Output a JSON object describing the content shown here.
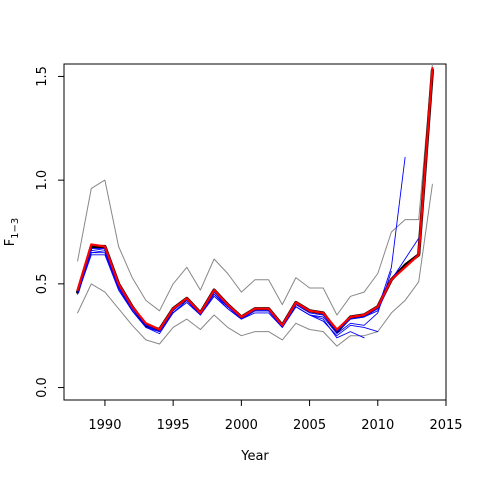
{
  "chart_data": {
    "type": "line",
    "title": "",
    "xlabel": "Year",
    "ylabel": "F",
    "ylabel_subscript": "1−3",
    "xlim": [
      1987,
      2015
    ],
    "ylim": [
      -0.06,
      1.56
    ],
    "xticks": [
      1990,
      1995,
      2000,
      2005,
      2010,
      2015
    ],
    "xtick_labels": [
      "1990",
      "1995",
      "2000",
      "2005",
      "2010",
      "2015"
    ],
    "yticks": [
      0.0,
      0.5,
      1.0,
      1.5
    ],
    "ytick_labels": [
      "0.0",
      "0.5",
      "1.0",
      "1.5"
    ],
    "grid": false,
    "colors": {
      "main": "#ff0000",
      "retro": "#0000ff",
      "ci": "#888888",
      "dark": "#000000"
    },
    "series": [
      {
        "role": "ci",
        "x": [
          1988,
          1989,
          1990,
          1991,
          1992,
          1993,
          1994,
          1995,
          1996,
          1997,
          1998,
          1999,
          2000,
          2001,
          2002,
          2003,
          2004,
          2005,
          2006,
          2007,
          2008,
          2009,
          2010,
          2011,
          2012,
          2013,
          2014
        ],
        "y": [
          0.61,
          0.96,
          1.0,
          0.68,
          0.53,
          0.42,
          0.37,
          0.5,
          0.58,
          0.47,
          0.62,
          0.55,
          0.46,
          0.52,
          0.52,
          0.4,
          0.53,
          0.48,
          0.48,
          0.35,
          0.44,
          0.46,
          0.55,
          0.75,
          0.81,
          0.81,
          1.56
        ]
      },
      {
        "role": "ci",
        "x": [
          1988,
          1989,
          1990,
          1991,
          1992,
          1993,
          1994,
          1995,
          1996,
          1997,
          1998,
          1999,
          2000,
          2001,
          2002,
          2003,
          2004,
          2005,
          2006,
          2007,
          2008,
          2009,
          2010,
          2011,
          2012,
          2013,
          2014
        ],
        "y": [
          0.36,
          0.5,
          0.46,
          0.38,
          0.3,
          0.23,
          0.21,
          0.29,
          0.33,
          0.28,
          0.35,
          0.29,
          0.25,
          0.27,
          0.27,
          0.23,
          0.31,
          0.28,
          0.27,
          0.2,
          0.25,
          0.25,
          0.27,
          0.36,
          0.42,
          0.51,
          0.98
        ]
      },
      {
        "role": "dark",
        "x": [
          1988,
          1989,
          1990,
          1991,
          1992,
          1993,
          1994,
          1995,
          1996,
          1997,
          1998,
          1999,
          2000,
          2001,
          2002,
          2003,
          2004,
          2005,
          2006,
          2007,
          2008,
          2009,
          2010,
          2011,
          2012,
          2013,
          2014
        ],
        "y": [
          0.46,
          0.68,
          0.68,
          0.5,
          0.39,
          0.3,
          0.28,
          0.38,
          0.43,
          0.36,
          0.47,
          0.4,
          0.34,
          0.38,
          0.38,
          0.3,
          0.41,
          0.37,
          0.36,
          0.27,
          0.34,
          0.35,
          0.39,
          0.52,
          0.59,
          0.64,
          1.53
        ]
      },
      {
        "role": "retro",
        "x": [
          1988,
          1989,
          1990,
          1991,
          1992,
          1993,
          1994,
          1995,
          1996,
          1997,
          1998,
          1999,
          2000,
          2001,
          2002,
          2003,
          2004,
          2005,
          2006,
          2007,
          2008,
          2009,
          2010,
          2011,
          2012
        ],
        "y": [
          0.46,
          0.66,
          0.67,
          0.49,
          0.38,
          0.3,
          0.27,
          0.37,
          0.43,
          0.36,
          0.46,
          0.4,
          0.34,
          0.38,
          0.38,
          0.3,
          0.4,
          0.37,
          0.36,
          0.27,
          0.33,
          0.34,
          0.38,
          0.58,
          1.11
        ]
      },
      {
        "role": "retro",
        "x": [
          1988,
          1989,
          1990,
          1991,
          1992,
          1993,
          1994,
          1995,
          1996,
          1997,
          1998,
          1999,
          2000,
          2001,
          2002,
          2003,
          2004,
          2005,
          2006,
          2007,
          2008,
          2009,
          2010,
          2011,
          2012,
          2013
        ],
        "y": [
          0.46,
          0.67,
          0.67,
          0.49,
          0.38,
          0.3,
          0.28,
          0.37,
          0.43,
          0.35,
          0.46,
          0.39,
          0.34,
          0.37,
          0.37,
          0.3,
          0.4,
          0.36,
          0.35,
          0.27,
          0.33,
          0.34,
          0.37,
          0.52,
          0.62,
          0.72
        ]
      },
      {
        "role": "retro",
        "x": [
          1988,
          1989,
          1990,
          1991,
          1992,
          1993,
          1994,
          1995,
          1996,
          1997,
          1998,
          1999,
          2000,
          2001,
          2002,
          2003,
          2004,
          2005,
          2006,
          2007,
          2008,
          2009,
          2010,
          2011
        ],
        "y": [
          0.46,
          0.65,
          0.65,
          0.48,
          0.37,
          0.29,
          0.27,
          0.36,
          0.42,
          0.35,
          0.45,
          0.38,
          0.33,
          0.37,
          0.37,
          0.29,
          0.39,
          0.35,
          0.34,
          0.26,
          0.31,
          0.3,
          0.36,
          0.56
        ]
      },
      {
        "role": "retro",
        "x": [
          1988,
          1989,
          1990,
          1991,
          1992,
          1993,
          1994,
          1995,
          1996,
          1997,
          1998,
          1999,
          2000,
          2001,
          2002,
          2003,
          2004,
          2005,
          2006,
          2007,
          2008,
          2009,
          2010
        ],
        "y": [
          0.45,
          0.64,
          0.64,
          0.47,
          0.37,
          0.29,
          0.26,
          0.36,
          0.41,
          0.35,
          0.44,
          0.38,
          0.33,
          0.36,
          0.36,
          0.29,
          0.39,
          0.35,
          0.32,
          0.25,
          0.3,
          0.29,
          0.27
        ]
      },
      {
        "role": "retro",
        "x": [
          1988,
          1989,
          1990,
          1991,
          1992,
          1993,
          1994,
          1995,
          1996,
          1997,
          1998,
          1999,
          2000,
          2001,
          2002,
          2003,
          2004,
          2005,
          2006,
          2007,
          2008,
          2009
        ],
        "y": [
          0.46,
          0.65,
          0.66,
          0.48,
          0.37,
          0.29,
          0.27,
          0.36,
          0.42,
          0.35,
          0.45,
          0.39,
          0.33,
          0.37,
          0.37,
          0.29,
          0.39,
          0.35,
          0.33,
          0.24,
          0.27,
          0.24
        ]
      },
      {
        "role": "main",
        "x": [
          1988,
          1989,
          1990,
          1991,
          1992,
          1993,
          1994,
          1995,
          1996,
          1997,
          1998,
          1999,
          2000,
          2001,
          2002,
          2003,
          2004,
          2005,
          2006,
          2007,
          2008,
          2009,
          2010,
          2011,
          2012,
          2013,
          2014
        ],
        "y": [
          0.47,
          0.69,
          0.68,
          0.5,
          0.39,
          0.31,
          0.28,
          0.38,
          0.43,
          0.36,
          0.47,
          0.4,
          0.34,
          0.38,
          0.38,
          0.3,
          0.41,
          0.37,
          0.36,
          0.28,
          0.34,
          0.35,
          0.39,
          0.52,
          0.58,
          0.64,
          1.54
        ]
      }
    ]
  }
}
